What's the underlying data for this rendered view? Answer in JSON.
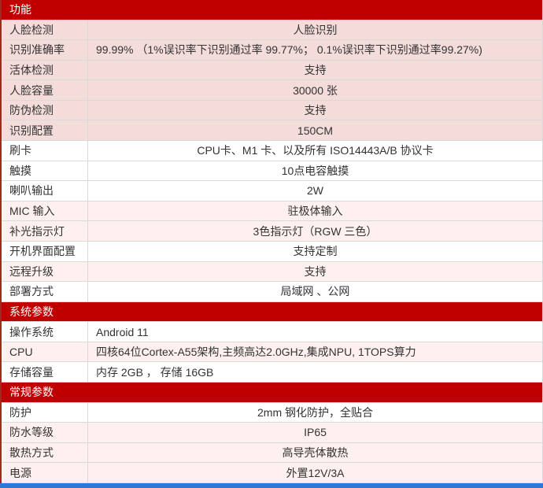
{
  "table": {
    "sections": [
      {
        "header": "功能",
        "rows": [
          {
            "label": "人脸检测",
            "value": "人脸识别",
            "bg": "pink",
            "align": "center"
          },
          {
            "label": "识别准确率",
            "value": "99.99% （1%误识率下识别通过率 99.77%；  0.1%误识率下识别通过率99.27%)",
            "bg": "pink",
            "align": "left"
          },
          {
            "label": "活体检测",
            "value": "支持",
            "bg": "pink",
            "align": "center"
          },
          {
            "label": "人脸容量",
            "value": "30000 张",
            "bg": "pink",
            "align": "center"
          },
          {
            "label": "防伪检测",
            "value": "支持",
            "bg": "pink",
            "align": "center"
          },
          {
            "label": "识别配置",
            "value": "150CM",
            "bg": "pink",
            "align": "center"
          },
          {
            "label": "刷卡",
            "value": "CPU卡、M1 卡、以及所有 ISO14443A/B 协议卡",
            "bg": "white",
            "align": "center"
          },
          {
            "label": "触摸",
            "value": "10点电容触摸",
            "bg": "white",
            "align": "center"
          },
          {
            "label": "喇叭输出",
            "value": "2W",
            "bg": "white",
            "align": "center"
          },
          {
            "label": "MIC 输入",
            "value": "驻极体输入",
            "bg": "lightpink",
            "align": "center"
          },
          {
            "label": "补光指示灯",
            "value": "3色指示灯（RGW 三色）",
            "bg": "lightpink",
            "align": "center"
          },
          {
            "label": "开机界面配置",
            "value": "支持定制",
            "bg": "white",
            "align": "center"
          },
          {
            "label": "远程升级",
            "value": "支持",
            "bg": "lightpink",
            "align": "center"
          },
          {
            "label": "部署方式",
            "value": "局域网 、公网",
            "bg": "white",
            "align": "center"
          }
        ]
      },
      {
        "header": "系统参数",
        "rows": [
          {
            "label": "操作系统",
            "value": "Android 11",
            "bg": "white",
            "align": "left"
          },
          {
            "label": "CPU",
            "value": "四核64位Cortex-A55架构,主频高达2.0GHz,集成NPU, 1TOPS算力",
            "bg": "lightpink",
            "align": "left"
          },
          {
            "label": "存储容量",
            "value": "内存 2GB ， 存储 16GB",
            "bg": "white",
            "align": "left"
          }
        ]
      },
      {
        "header": "常规参数",
        "rows": [
          {
            "label": "防护",
            "value": "2mm 钢化防护，全贴合",
            "bg": "white",
            "align": "center"
          },
          {
            "label": "防水等级",
            "value": "IP65",
            "bg": "lightpink",
            "align": "center"
          },
          {
            "label": "散热方式",
            "value": "高导壳体散热",
            "bg": "lightpink",
            "align": "center"
          },
          {
            "label": "电源",
            "value": "外置12V/3A",
            "bg": "lightpink",
            "align": "center"
          }
        ]
      }
    ]
  },
  "colors": {
    "header_bg": "#c00000",
    "header_text": "#ffffff",
    "row_pink": "#f3dcda",
    "row_light_pink": "#fdf0ee",
    "row_white": "#ffffff",
    "grid_border": "#d9d9d9",
    "outer_left_border": "#a6271f",
    "bottom_bar": "#2e77d4",
    "text": "#333333"
  }
}
